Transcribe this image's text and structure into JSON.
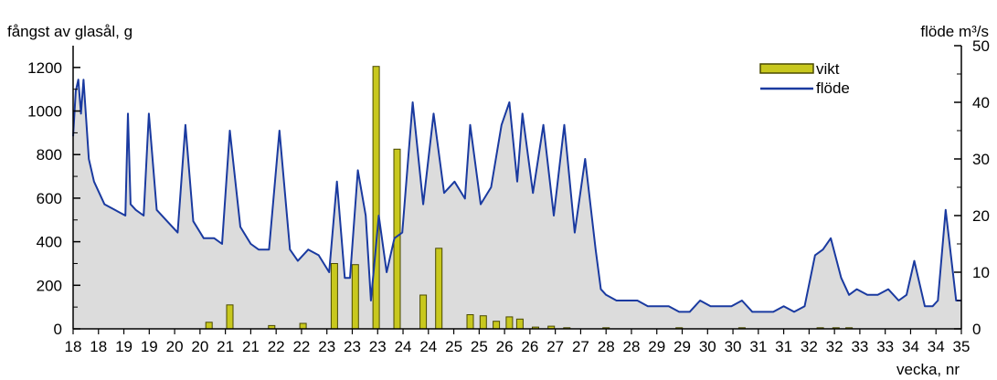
{
  "chart_data": {
    "type": "bar",
    "ylabel_left": "fångst av glasål, g",
    "ylabel_right": "flöde m³/s",
    "xlabel": "vecka, nr",
    "x_ticks": [
      "18",
      "18",
      "19",
      "19",
      "20",
      "20",
      "21",
      "21",
      "22",
      "22",
      "23",
      "23",
      "23",
      "24",
      "24",
      "25",
      "25",
      "26",
      "26",
      "27",
      "27",
      "28",
      "28",
      "29",
      "29",
      "30",
      "30",
      "31",
      "31",
      "32",
      "32",
      "33",
      "33",
      "34",
      "34",
      "35"
    ],
    "ylim_left": [
      0,
      1300
    ],
    "ylim_right": [
      0,
      50
    ],
    "yticks_left": [
      0,
      200,
      400,
      600,
      800,
      1000,
      1200
    ],
    "yticks_right": [
      0,
      10,
      20,
      30,
      40,
      50
    ],
    "legend": {
      "position": "top-right",
      "bar_label": "vikt",
      "line_label": "flöde"
    },
    "colors": {
      "bar_fill": "#c8c81e",
      "bar_stroke": "#4a4a00",
      "line": "#1a3aa0",
      "area": "#dcdcdc"
    },
    "series": [
      {
        "name": "vikt",
        "type": "bar",
        "axis": "left",
        "x": [
          20.6,
          21.0,
          21.8,
          22.4,
          23.0,
          23.4,
          23.8,
          24.2,
          24.7,
          25.0,
          25.6,
          25.85,
          26.1,
          26.35,
          26.55,
          26.85,
          27.15,
          27.45,
          28.2,
          29.6,
          30.8,
          32.3,
          32.6,
          32.85
        ],
        "values": [
          30,
          110,
          15,
          25,
          300,
          295,
          1205,
          825,
          155,
          370,
          65,
          60,
          35,
          55,
          45,
          8,
          12,
          5,
          5,
          5,
          5,
          5,
          5,
          5
        ]
      },
      {
        "name": "flöde",
        "type": "line",
        "axis": "right",
        "x": [
          18.0,
          18.05,
          18.1,
          18.15,
          18.2,
          18.3,
          18.4,
          18.5,
          18.6,
          18.8,
          19.0,
          19.05,
          19.1,
          19.2,
          19.35,
          19.45,
          19.6,
          19.8,
          20.0,
          20.15,
          20.3,
          20.5,
          20.7,
          20.85,
          21.0,
          21.2,
          21.4,
          21.55,
          21.75,
          21.95,
          22.15,
          22.3,
          22.5,
          22.7,
          22.9,
          23.05,
          23.2,
          23.3,
          23.45,
          23.6,
          23.7,
          23.85,
          24.0,
          24.15,
          24.3,
          24.5,
          24.7,
          24.9,
          25.1,
          25.3,
          25.5,
          25.6,
          25.8,
          26.0,
          26.2,
          26.35,
          26.5,
          26.6,
          26.8,
          27.0,
          27.2,
          27.4,
          27.6,
          27.8,
          28.0,
          28.1,
          28.2,
          28.4,
          28.6,
          28.8,
          29.0,
          29.2,
          29.4,
          29.6,
          29.8,
          30.0,
          30.2,
          30.4,
          30.6,
          30.8,
          31.0,
          31.2,
          31.4,
          31.6,
          31.8,
          32.0,
          32.2,
          32.35,
          32.5,
          32.7,
          32.85,
          33.0,
          33.2,
          33.4,
          33.6,
          33.8,
          33.95,
          34.1,
          34.3,
          34.45,
          34.55,
          34.7,
          34.9,
          35.0
        ],
        "values": [
          34,
          42,
          44,
          38,
          44,
          30,
          26,
          24,
          22,
          21,
          20,
          38,
          22,
          21,
          20,
          38,
          21,
          19,
          17,
          36,
          19,
          16,
          16,
          15,
          35,
          18,
          15,
          14,
          14,
          35,
          14,
          12,
          14,
          13,
          10,
          26,
          9,
          9,
          28,
          20,
          5,
          20,
          10,
          16,
          17,
          40,
          22,
          38,
          24,
          26,
          23,
          36,
          22,
          25,
          36,
          40,
          26,
          38,
          24,
          36,
          20,
          36,
          17,
          30,
          14,
          7,
          6,
          5,
          5,
          5,
          4,
          4,
          4,
          3,
          3,
          5,
          4,
          4,
          4,
          5,
          3,
          3,
          3,
          4,
          3,
          4,
          13,
          14,
          16,
          9,
          6,
          7,
          6,
          6,
          7,
          5,
          6,
          12,
          4,
          4,
          5,
          21,
          5,
          5
        ]
      }
    ]
  }
}
